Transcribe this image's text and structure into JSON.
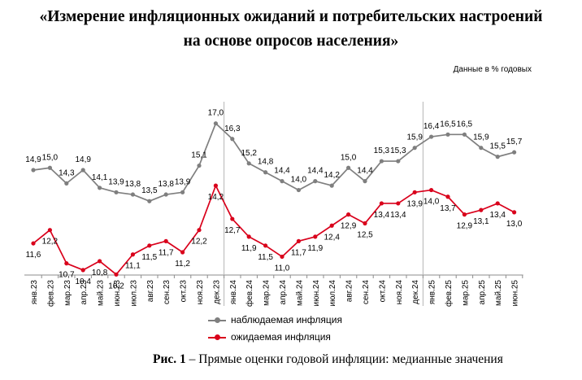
{
  "header": {
    "title_line1": "«Измерение инфляционных ожиданий и потребительских настроений",
    "title_line2": "на основе опросов населения»",
    "units": "Данные в % годовых"
  },
  "chart_data": {
    "type": "line",
    "categories": [
      "янв.23",
      "фев.23",
      "мар.23",
      "апр.23",
      "май.23",
      "июн.23",
      "июл.23",
      "авг.23",
      "сен.23",
      "окт.23",
      "ноя.23",
      "дек.23",
      "янв.24",
      "фев.24",
      "мар.24",
      "апр.24",
      "май.24",
      "июн.24",
      "июл.24",
      "авг.24",
      "сен.24",
      "окт.24",
      "ноя.24",
      "дек.24",
      "янв.25",
      "фев.25",
      "мар.25",
      "апр.25",
      "май.25",
      "июн.25"
    ],
    "series": [
      {
        "name": "наблюдаемая инфляция",
        "color": "#7f7f7f",
        "values": [
          14.9,
          15.0,
          14.3,
          14.9,
          14.1,
          13.9,
          13.8,
          13.5,
          13.8,
          13.9,
          15.1,
          17.0,
          16.3,
          15.2,
          14.8,
          14.4,
          14.0,
          14.4,
          14.2,
          15.0,
          14.4,
          15.3,
          15.3,
          15.9,
          16.4,
          16.5,
          16.5,
          15.9,
          15.5,
          15.7
        ],
        "labels": [
          "14,9",
          "15,0",
          "14,3",
          "14,9",
          "14,1",
          "13,9",
          "13,8",
          "13,5",
          "13,8",
          "13,9",
          "15,1",
          "17,0",
          "16,3",
          "15,2",
          "14,8",
          "14,4",
          "14,0",
          "14,4",
          "14,2",
          "15,0",
          "14,4",
          "15,3",
          "15,3",
          "15,9",
          "16,4",
          "16,5",
          "16,5",
          "15,9",
          "15,5",
          "15,7"
        ]
      },
      {
        "name": "ожидаемая инфляция",
        "color": "#d9001b",
        "values": [
          11.6,
          12.2,
          10.7,
          10.4,
          10.8,
          10.2,
          11.1,
          11.5,
          11.7,
          11.2,
          12.2,
          14.2,
          12.7,
          11.9,
          11.5,
          11.0,
          11.7,
          11.9,
          12.4,
          12.9,
          12.5,
          13.4,
          13.4,
          13.9,
          14.0,
          13.7,
          12.9,
          13.1,
          13.4,
          13.0
        ],
        "labels": [
          "11,6",
          "12,2",
          "10,7",
          "10,4",
          "10,8",
          "10,2",
          "11,1",
          "11,5",
          "11,7",
          "11,2",
          "12,2",
          "14,2",
          "12,7",
          "11,9",
          "11,5",
          "11,0",
          "11,7",
          "11,9",
          "12,4",
          "12,9",
          "12,5",
          "13,4",
          "13,4",
          "13,9",
          "14,0",
          "13,7",
          "12,9",
          "13,1",
          "13,4",
          "13,0"
        ]
      }
    ],
    "year_separators_after": [
      "дек.23",
      "дек.24"
    ],
    "grid": false,
    "legend_position": "bottom"
  },
  "caption": {
    "prefix": "Рис. 1",
    "text": " – Прямые оценки годовой инфляции: медианные значения"
  }
}
